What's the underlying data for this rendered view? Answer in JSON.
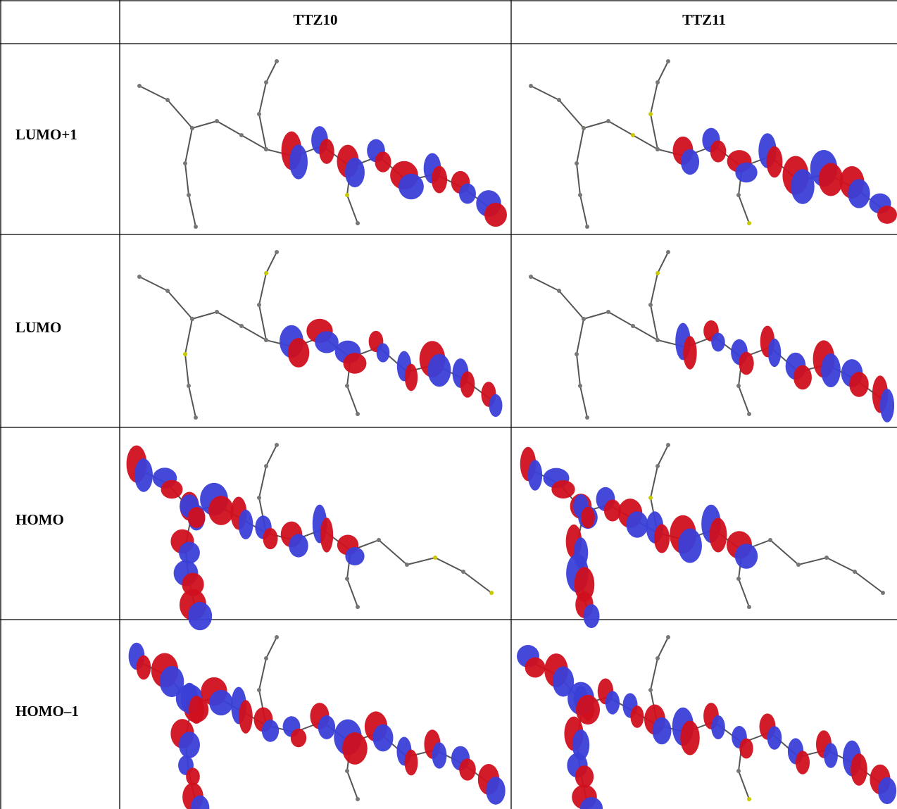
{
  "table": {
    "columns": [
      "TTZ10",
      "TTZ11"
    ],
    "rows": [
      "LUMO+1",
      "LUMO",
      "HOMO",
      "HOMO–1"
    ]
  }
}
